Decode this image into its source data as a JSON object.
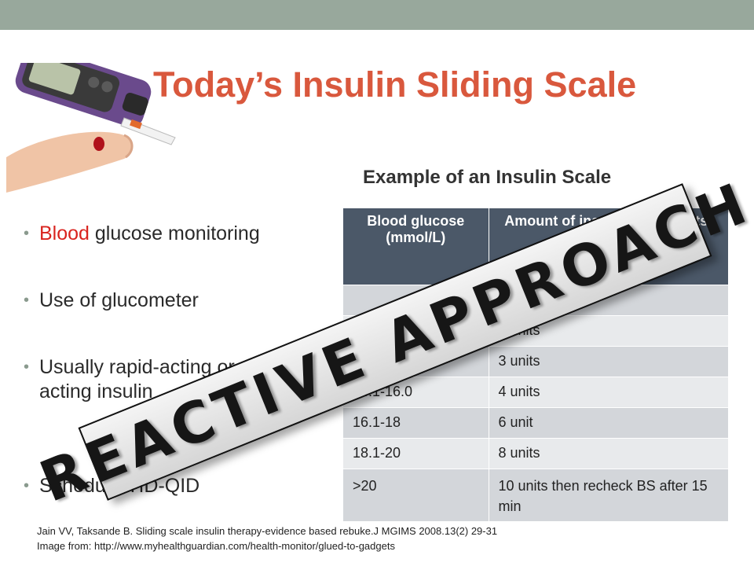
{
  "slide": {
    "title": "Today’s Insulin Sliding Scale",
    "photo_icon": "glucometer-finger-photo"
  },
  "bullets": [
    {
      "prefix_red": "Blood",
      "rest": " glucose monitoring"
    },
    {
      "text": "Use of glucometer"
    },
    {
      "text": "Usually rapid-acting or short-acting insulin"
    },
    {
      "text": "Schedule:TID-QID"
    }
  ],
  "table": {
    "caption": "Example of an Insulin Scale",
    "headers": [
      "Blood glucose (mmol/L)",
      "Amount of insulin given (units)"
    ],
    "rows": [
      [
        "",
        "1 units"
      ],
      [
        "",
        "2 units"
      ],
      [
        "12.1-14.0",
        "3 units"
      ],
      [
        "14.1-16.0",
        "4 units"
      ],
      [
        "16.1-18",
        "6 unit"
      ],
      [
        "18.1-20",
        "8 units"
      ],
      [
        ">20",
        "10 units then recheck BS after 15 min"
      ]
    ]
  },
  "stamp": {
    "text": "REACTIVE APPROACH"
  },
  "references": {
    "citation": "Jain VV, Taksande B. Sliding scale insulin therapy-evidence based rebuke.J MGIMS 2008.13(2) 29-31",
    "image_credit": "Image from: http://www.myhealthguardian.com/health-monitor/glued-to-gadgets"
  },
  "colors": {
    "title": "#d9583d",
    "top_bar": "#98a89c",
    "table_header": "#4b5868",
    "highlight_red": "#d9241f"
  }
}
